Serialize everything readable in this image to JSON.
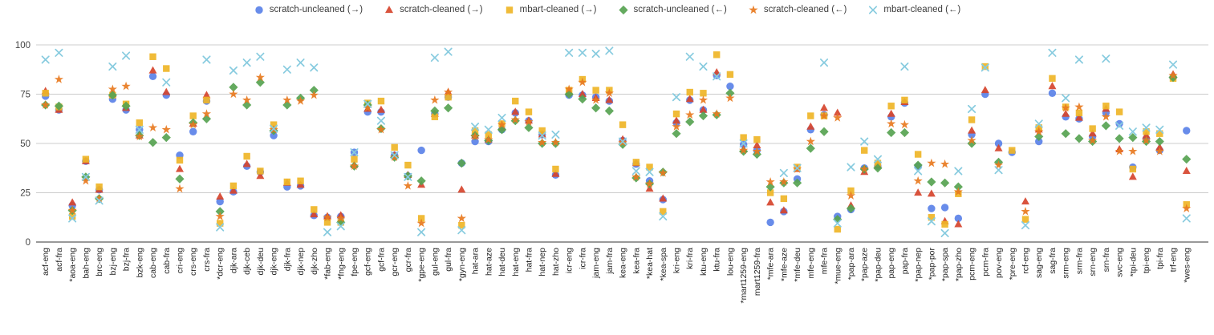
{
  "page": {
    "background": "#ffffff"
  },
  "chart_data": {
    "type": "scatter",
    "title": "",
    "legend_position": "top",
    "grid": true,
    "xlabel": "",
    "ylabel": "",
    "ylim": [
      0,
      100
    ],
    "yticks": [
      0,
      25,
      50,
      75,
      100
    ],
    "categories": [
      "acf-eng",
      "acf-fra",
      "*aoa-eng",
      "bah-eng",
      "brc-eng",
      "bzj-eng",
      "bzj-fra",
      "bzk-eng",
      "cab-eng",
      "cab-fra",
      "cri-eng",
      "crs-eng",
      "crs-fra",
      "*dcr-eng",
      "djk-ara",
      "djk-ceb",
      "djk-deu",
      "djk-eng",
      "djk-fra",
      "djk-nep",
      "djk-zho",
      "*fab-eng",
      "*fng-eng",
      "fpe-eng",
      "gcf-eng",
      "gcf-fra",
      "gcr-eng",
      "gcr-fra",
      "*gpe-eng",
      "gul-eng",
      "gul-fra",
      "*gyn-eng",
      "hat-ara",
      "hat-aze",
      "hat-deu",
      "hat-eng",
      "hat-fra",
      "hat-nep",
      "hat-zho",
      "icr-eng",
      "icr-fra",
      "jam-eng",
      "jam-fra",
      "kea-eng",
      "kea-fra",
      "*kea-hat",
      "*kea-spa",
      "kri-eng",
      "kri-fra",
      "ktu-eng",
      "ktu-fra",
      "lou-eng",
      "*mart1259-eng",
      "mart1259-fra",
      "*mfe-ara",
      "*mfe-aze",
      "*mfe-deu",
      "mfe-eng",
      "mfe-fra",
      "*mue-eng",
      "*pap-ara",
      "*pap-aze",
      "*pap-deu",
      "pap-eng",
      "pap-fra",
      "*pap-nep",
      "*pap-por",
      "*pap-spa",
      "*pap-zho",
      "pcm-eng",
      "pcm-fra",
      "pov-eng",
      "*pre-eng",
      "rcf-eng",
      "sag-eng",
      "sag-fra",
      "srm-eng",
      "srm-fra",
      "srn-eng",
      "srn-fra",
      "svc-eng",
      "*tpi-deu",
      "tpi-eng",
      "tpi-fra",
      "trf-eng",
      "*wes-eng"
    ],
    "series": [
      {
        "name": "scratch-uncleaned (→)",
        "marker": "circle",
        "color": "#5b82e8",
        "values": [
          74,
          67,
          18.5,
          41,
          26.5,
          72.5,
          67,
          57,
          84,
          74.5,
          44,
          56,
          71.5,
          20.5,
          25.5,
          38.5,
          35.5,
          54,
          28,
          28.5,
          13.5,
          12.5,
          13,
          45.5,
          66,
          66,
          44,
          33.5,
          46.5,
          65,
          73.5,
          40,
          51,
          51,
          57,
          65.5,
          61.5,
          54.5,
          34,
          74.5,
          74.5,
          73.5,
          71.5,
          51.5,
          39.5,
          31,
          21.5,
          60.5,
          72,
          67,
          84.5,
          79,
          49.5,
          46.5,
          10,
          15.5,
          32,
          57,
          64.5,
          13,
          16.5,
          37.5,
          38.5,
          63.5,
          70.5,
          38.5,
          17,
          17.5,
          12,
          54.5,
          75,
          50,
          45.5,
          null,
          51,
          75.5,
          63.5,
          62.5,
          53.5,
          65.5,
          60,
          38,
          52.5,
          46.5,
          83.5,
          56.5
        ]
      },
      {
        "name": "scratch-cleaned (→)",
        "marker": "triangle",
        "color": "#d6442c",
        "values": [
          76.5,
          67,
          20,
          41,
          26.5,
          75,
          68,
          54,
          87,
          76,
          37,
          60,
          74.5,
          23,
          26,
          39.5,
          33.5,
          57,
          30,
          29,
          14,
          13,
          13.5,
          39,
          67.5,
          67,
          44,
          34,
          29,
          65,
          76,
          26.5,
          54,
          52,
          58,
          66,
          61.5,
          54.5,
          34.5,
          76,
          75,
          73,
          72,
          52,
          40,
          27,
          22,
          61.5,
          72.5,
          67,
          86,
          null,
          47,
          49,
          20,
          16,
          37,
          58.5,
          68,
          65.5,
          18.5,
          35.5,
          39,
          65,
          71,
          25,
          24.5,
          10.5,
          9,
          56.5,
          77,
          47.5,
          null,
          20.5,
          57,
          79,
          65,
          63,
          55,
          67.5,
          47,
          33,
          54,
          48,
          85,
          36
        ]
      },
      {
        "name": "mbart-cleaned (→)",
        "marker": "square",
        "color": "#efb527",
        "values": [
          75.5,
          68.5,
          13,
          42,
          28,
          74.5,
          70,
          60.5,
          94,
          88,
          41.5,
          64,
          72,
          9.5,
          28.5,
          43.5,
          36,
          59.5,
          30.5,
          31,
          16.5,
          10,
          10,
          42,
          70.5,
          71.5,
          48,
          39,
          12,
          63.5,
          73.5,
          8.5,
          56.5,
          54.5,
          60,
          71.5,
          66,
          56.5,
          37,
          77,
          82.5,
          77,
          77,
          59.5,
          40.5,
          38,
          15.5,
          65,
          76,
          75.5,
          95,
          85,
          53,
          52,
          25,
          22,
          38,
          64,
          64,
          6.5,
          26,
          46.5,
          40,
          69,
          72,
          44.5,
          12.5,
          9,
          24.5,
          62,
          89,
          null,
          46.5,
          11.5,
          58,
          83,
          68.5,
          65.5,
          57.5,
          69,
          66,
          37,
          56,
          55,
          83,
          19
        ]
      },
      {
        "name": "scratch-uncleaned (←)",
        "marker": "diamond",
        "color": "#57a351",
        "values": [
          69.5,
          69,
          16,
          33,
          22,
          74.5,
          69,
          54,
          50.5,
          53,
          32,
          60.5,
          62.5,
          15.5,
          78.5,
          69.5,
          81,
          56.5,
          69.5,
          73,
          77,
          null,
          10,
          38.5,
          69.5,
          57.5,
          43,
          33.5,
          31,
          66.5,
          68,
          40,
          54,
          51.5,
          57,
          61.5,
          58,
          50,
          50,
          75,
          72.5,
          68,
          66.5,
          49.5,
          32.5,
          29.5,
          35.5,
          55,
          61,
          64,
          64.5,
          75.5,
          46,
          44.5,
          28,
          30,
          30,
          47.5,
          56,
          11.5,
          17,
          37,
          37.5,
          55.5,
          55.5,
          39,
          30.5,
          30,
          28,
          50,
          null,
          40.5,
          null,
          null,
          53.5,
          null,
          55,
          52.5,
          51,
          59,
          52.5,
          53,
          51,
          51,
          83.5,
          42
        ]
      },
      {
        "name": "scratch-cleaned (←)",
        "marker": "star",
        "color": "#e8791f",
        "values": [
          69.5,
          82.5,
          16,
          31,
          22,
          77.5,
          79,
          53.5,
          58,
          57,
          27,
          59.5,
          65,
          13,
          75,
          72,
          83.5,
          57,
          72,
          71.5,
          74.5,
          12.5,
          12,
          38.5,
          68,
          57,
          43,
          28.5,
          9.5,
          72,
          76,
          12,
          53.5,
          52,
          59.5,
          62,
          61,
          50.5,
          50.5,
          77.5,
          81,
          72,
          75.5,
          50.5,
          33,
          29.5,
          35,
          58.5,
          64.5,
          72,
          65,
          73,
          46.5,
          46,
          30.5,
          30.5,
          37,
          51,
          64,
          63,
          23.5,
          37,
          null,
          60,
          59.5,
          31,
          40,
          39.5,
          25.5,
          51.5,
          null,
          39,
          null,
          15.5,
          56,
          null,
          68,
          68.5,
          51.5,
          63.5,
          46,
          46,
          51.5,
          46,
          84.5,
          17
        ]
      },
      {
        "name": "mbart-cleaned (←)",
        "marker": "x",
        "color": "#87cbdf",
        "values": [
          92.5,
          96,
          12,
          33,
          21,
          89,
          94.5,
          57,
          null,
          81,
          null,
          null,
          92.5,
          7.5,
          87,
          91,
          94,
          57.5,
          87.5,
          91,
          88.5,
          5,
          8,
          45.5,
          70,
          61.5,
          44,
          33,
          5,
          93.5,
          96.5,
          6,
          58.5,
          57,
          63,
          null,
          null,
          54,
          54.5,
          96,
          96,
          95.5,
          97,
          51,
          36,
          35.5,
          13,
          73.5,
          94,
          89,
          84,
          null,
          50,
          null,
          null,
          35,
          37.5,
          null,
          91,
          9.5,
          38,
          51,
          42,
          null,
          89,
          36,
          10.5,
          4.5,
          36,
          67.5,
          88.5,
          36.5,
          null,
          8.5,
          60,
          96,
          73,
          92.5,
          null,
          93,
          59,
          56,
          58,
          57,
          90,
          12
        ]
      }
    ],
    "axis_colors": {
      "gridline": "#cccccc",
      "baseline": "#333333",
      "y_label": "#444444",
      "x_label": "#222222"
    }
  }
}
